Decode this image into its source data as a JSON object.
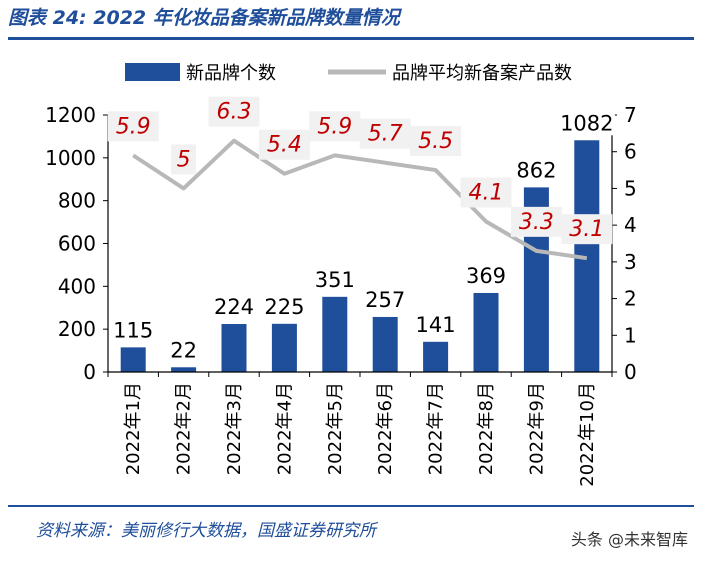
{
  "header": {
    "title": "图表 24:  2022 年化妆品备案新品牌数量情况"
  },
  "footer": {
    "source": "资料来源：美丽修行大数据，国盛证券研究所",
    "watermark": "头条 @未来智库"
  },
  "colors": {
    "bar": "#1f4e9a",
    "line": "#b8b8b8",
    "line_label": "#c00000",
    "title": "#1f4e9a"
  },
  "chart_data": {
    "type": "bar+line",
    "categories": [
      "2022年1月",
      "2022年2月",
      "2022年3月",
      "2022年4月",
      "2022年5月",
      "2022年6月",
      "2022年7月",
      "2022年8月",
      "2022年9月",
      "2022年10月"
    ],
    "series": [
      {
        "name": "新品牌个数",
        "type": "bar",
        "axis": "left",
        "values": [
          115,
          22,
          224,
          225,
          351,
          257,
          141,
          369,
          862,
          1082
        ]
      },
      {
        "name": "品牌平均新备案产品数",
        "type": "line",
        "axis": "right",
        "values": [
          5.9,
          5,
          6.3,
          5.4,
          5.9,
          5.7,
          5.5,
          4.1,
          3.3,
          3.1
        ]
      }
    ],
    "left_axis": {
      "ylim": [
        0,
        1200
      ],
      "ticks": [
        "0",
        "200",
        "400",
        "600",
        "800",
        "1000",
        "1200"
      ]
    },
    "right_axis": {
      "ylim": [
        0,
        7
      ],
      "ticks": [
        "0",
        "1",
        "2",
        "3",
        "4",
        "5",
        "6",
        "7"
      ]
    },
    "bar_labels": [
      "115",
      "22",
      "224",
      "225",
      "351",
      "257",
      "141",
      "369",
      "862",
      "1082"
    ],
    "line_labels": [
      "5.9",
      "5",
      "6.3",
      "5.4",
      "5.9",
      "5.7",
      "5.5",
      "4.1",
      "3.3",
      "3.1"
    ],
    "legend": {
      "position": "top",
      "entries": [
        "新品牌个数",
        "品牌平均新备案产品数"
      ]
    },
    "grid": false
  }
}
